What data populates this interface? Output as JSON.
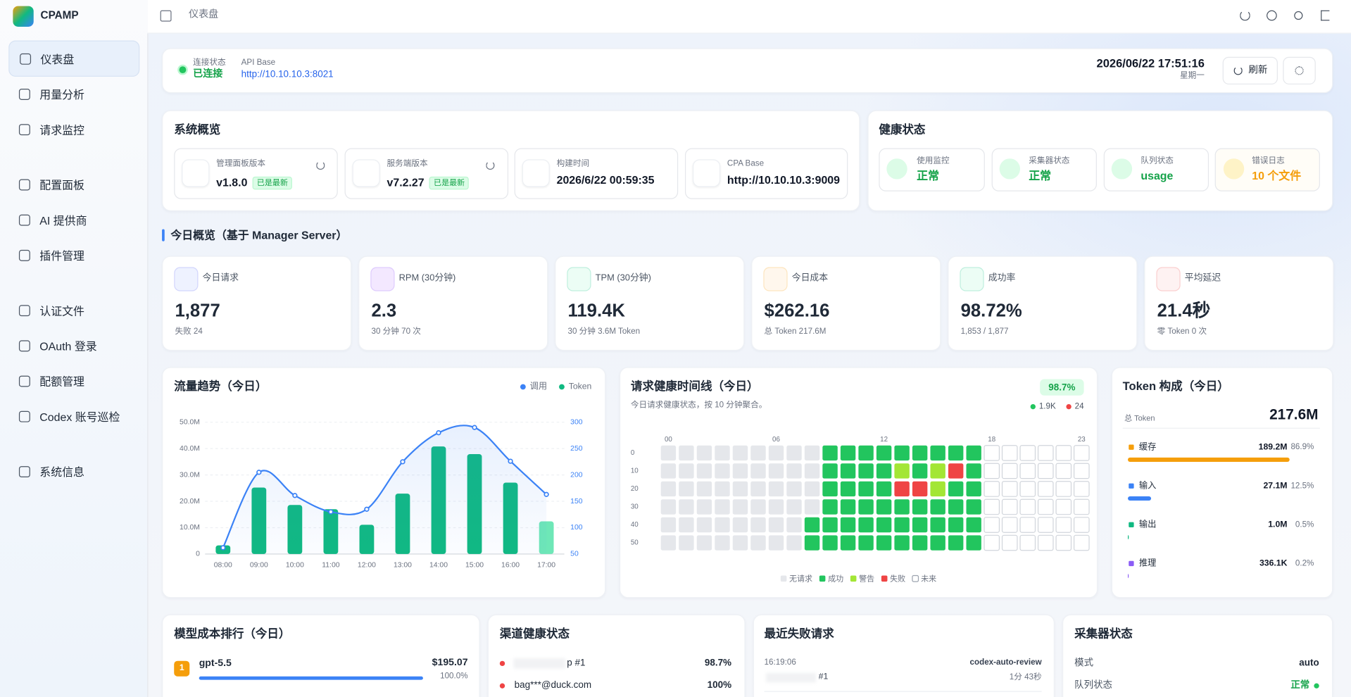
{
  "sidebar": {
    "brand": "CPAMP",
    "items": [
      "仪表盘",
      "用量分析",
      "请求监控",
      "配置面板",
      "AI 提供商",
      "插件管理",
      "认证文件",
      "OAuth 登录",
      "配额管理",
      "Codex 账号巡检",
      "系统信息"
    ]
  },
  "topbar": {
    "breadcrumb": "仪表盘"
  },
  "connection": {
    "status_label": "连接状态",
    "status": "已连接",
    "api_label": "API Base",
    "api": "http://10.10.10.3:8021",
    "datetime": "2026/06/22 17:51:16",
    "weekday": "星期一",
    "refresh": "刷新"
  },
  "overview": {
    "title": "系统概览",
    "cards": [
      {
        "label": "管理面板版本",
        "value": "v1.8.0",
        "badge": "已是最新"
      },
      {
        "label": "服务端版本",
        "value": "v7.2.27",
        "badge": "已是最新"
      },
      {
        "label": "构建时间",
        "value": "2026/6/22 00:59:35"
      },
      {
        "label": "CPA Base",
        "value": "http://10.10.10.3:9009"
      }
    ]
  },
  "health": {
    "title": "健康状态",
    "cards": [
      {
        "label": "使用监控",
        "value": "正常"
      },
      {
        "label": "采集器状态",
        "value": "正常"
      },
      {
        "label": "队列状态",
        "value": "usage"
      },
      {
        "label": "错误日志",
        "value": "10 个文件"
      }
    ]
  },
  "today": {
    "title": "今日概览（基于 Manager Server）",
    "cards": [
      {
        "label": "今日请求",
        "value": "1,877",
        "sub": "失败 24"
      },
      {
        "label": "RPM (30分钟)",
        "value": "2.3",
        "sub": "30 分钟 70 次"
      },
      {
        "label": "TPM (30分钟)",
        "value": "119.4K",
        "sub": "30 分钟 3.6M Token"
      },
      {
        "label": "今日成本",
        "value": "$262.16",
        "sub": "总 Token 217.6M"
      },
      {
        "label": "成功率",
        "value": "98.72%",
        "sub": "1,853 / 1,877"
      },
      {
        "label": "平均延迟",
        "value": "21.4秒",
        "sub": "零 Token 0 次"
      }
    ]
  },
  "chart_data": [
    {
      "type": "combo",
      "title": "流量趋势（今日）",
      "categories": [
        "08:00",
        "09:00",
        "10:00",
        "11:00",
        "12:00",
        "13:00",
        "14:00",
        "15:00",
        "16:00",
        "17:00"
      ],
      "series": [
        {
          "name": "调用",
          "color": "#3b82f6",
          "type": "line",
          "axis": "y2",
          "values": [
            62,
            205,
            161,
            130,
            135,
            225,
            280,
            290,
            226,
            163
          ]
        },
        {
          "name": "Token",
          "color": "#10b981",
          "type": "bar",
          "values": [
            3300000,
            25200000,
            18600000,
            17000000,
            11100000,
            22900000,
            40800000,
            37900000,
            27100000,
            12400000
          ],
          "colors": [
            "#10b981",
            "#10b981",
            "#10b981",
            "#10b981",
            "#10b981",
            "#10b981",
            "#10b981",
            "#10b981",
            "#10b981",
            "#6ee7b7"
          ]
        }
      ],
      "ylim": [
        0,
        50000000
      ],
      "yticks": [
        0,
        {
          "value": 10000000,
          "label": "10.0M"
        },
        {
          "value": 20000000,
          "label": "20.0M"
        },
        {
          "value": 30000000,
          "label": "30.0M"
        },
        {
          "value": 40000000,
          "label": "40.0M"
        },
        {
          "value": 50000000,
          "label": "50.0M"
        }
      ],
      "y2lim": [
        50,
        300
      ],
      "y2ticks": [
        50,
        100,
        150,
        200,
        250,
        300
      ],
      "grid": true
    },
    {
      "type": "heatmap",
      "title": "请求健康时间线（今日）",
      "subtitle": "今日请求健康状态，按 10 分钟聚合。",
      "badge": "98.7%",
      "counts": [
        {
          "color": "#22c55e",
          "label": "1.9K"
        },
        {
          "color": "#ef4444",
          "label": "24"
        }
      ],
      "categories": [
        "00",
        null,
        null,
        null,
        null,
        null,
        "06",
        null,
        null,
        null,
        null,
        null,
        "12",
        null,
        null,
        null,
        null,
        null,
        "18",
        null,
        null,
        null,
        null,
        "23"
      ],
      "rows": [
        "0",
        "10",
        "20",
        "30",
        "40",
        "50"
      ],
      "legend": [
        {
          "name": "无请求",
          "color": "#e5e7eb"
        },
        {
          "name": "成功",
          "color": "#22c55e"
        },
        {
          "name": "警告",
          "color": "#a3e635"
        },
        {
          "name": "失败",
          "color": "#ef4444"
        },
        {
          "name": "未来",
          "color": "#ffffff"
        }
      ],
      "values": [
        [
          0,
          0,
          0,
          0,
          0,
          0,
          0,
          0,
          0,
          1,
          1,
          1,
          1,
          1,
          1,
          1,
          1,
          1,
          4,
          4,
          4,
          4,
          4,
          4
        ],
        [
          0,
          0,
          0,
          0,
          0,
          0,
          0,
          0,
          0,
          1,
          1,
          1,
          1,
          2,
          1,
          2,
          3,
          1,
          4,
          4,
          4,
          4,
          4,
          4
        ],
        [
          0,
          0,
          0,
          0,
          0,
          0,
          0,
          0,
          0,
          1,
          1,
          1,
          1,
          3,
          3,
          2,
          1,
          1,
          4,
          4,
          4,
          4,
          4,
          4
        ],
        [
          0,
          0,
          0,
          0,
          0,
          0,
          0,
          0,
          0,
          1,
          1,
          1,
          1,
          1,
          1,
          1,
          1,
          1,
          4,
          4,
          4,
          4,
          4,
          4
        ],
        [
          0,
          0,
          0,
          0,
          0,
          0,
          0,
          0,
          1,
          1,
          1,
          1,
          1,
          1,
          1,
          1,
          1,
          1,
          4,
          4,
          4,
          4,
          4,
          4
        ],
        [
          0,
          0,
          0,
          0,
          0,
          0,
          0,
          0,
          1,
          1,
          1,
          1,
          1,
          1,
          1,
          1,
          1,
          1,
          4,
          4,
          4,
          4,
          4,
          4
        ]
      ]
    },
    {
      "type": "bar",
      "orientation": "horizontal",
      "title": "Token 构成（今日）",
      "total_label": "总 Token",
      "total": "217.6M",
      "categories": [
        "缓存",
        "输入",
        "输出",
        "推理"
      ],
      "amounts": [
        "189.2M",
        "27.1M",
        "1.0M",
        "336.1K"
      ],
      "values": [
        86.9,
        12.5,
        0.5,
        0.2
      ],
      "value_labels": [
        "86.9%",
        "12.5%",
        "0.5%",
        "0.2%"
      ],
      "colors": [
        "#f59e0b",
        "#3b82f6",
        "#10b981",
        "#8b5cf6"
      ],
      "xlim": [
        0,
        100
      ]
    }
  ],
  "model_cost": {
    "title": "模型成本排行（今日）",
    "rows": [
      {
        "rank": "1",
        "name": "gpt-5.5",
        "cost": "$195.07",
        "share": 100.0,
        "share_label": "100.0%"
      }
    ]
  },
  "channels": {
    "title": "渠道健康状态",
    "rows": [
      {
        "name": "p #1",
        "rate": "98.7%"
      },
      {
        "name": "bag***@duck.com",
        "rate": "100%"
      }
    ]
  },
  "failures": {
    "title": "最近失败请求",
    "rows": [
      {
        "time": "16:19:06",
        "model": "codex-auto-review",
        "name": "#1",
        "duration": "1分 43秒"
      }
    ]
  },
  "collector": {
    "title": "采集器状态",
    "rows": [
      {
        "label": "模式",
        "value": "auto"
      },
      {
        "label": "队列状态",
        "value": "正常"
      }
    ]
  }
}
